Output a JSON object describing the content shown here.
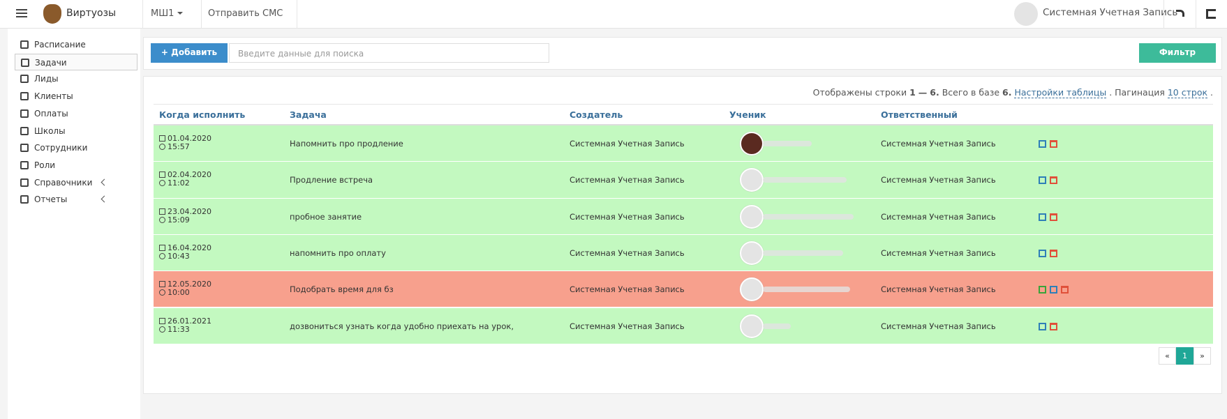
{
  "header": {
    "brand": "Виртуозы",
    "school": "МШ1",
    "sms": "Отправить СМС",
    "user": "Системная Учетная Запись"
  },
  "sidebar": [
    {
      "label": "Расписание"
    },
    {
      "label": "Задачи",
      "active": true
    },
    {
      "label": "Лиды"
    },
    {
      "label": "Клиенты"
    },
    {
      "label": "Оплаты"
    },
    {
      "label": "Школы"
    },
    {
      "label": "Сотрудники"
    },
    {
      "label": "Роли"
    },
    {
      "label": "Справочники",
      "submenu": true
    },
    {
      "label": "Отчеты",
      "submenu": true
    }
  ],
  "toolbar": {
    "add": "Добавить",
    "search_placeholder": "Введите данные для поиска",
    "filter": "Фильтр"
  },
  "info": {
    "t1": "Отображены строки",
    "from": "1",
    "dash": "—",
    "to": "6.",
    "t2": "Всего в базе",
    "total": "6.",
    "settings": "Настройки таблицы",
    "t3": ". Пагинация",
    "pagination": "10 строк",
    "t4": "."
  },
  "table": {
    "columns": [
      "Когда исполнить",
      "Задача",
      "Создатель",
      "Ученик",
      "Ответственный"
    ],
    "rows": [
      {
        "date": "01.04.2020",
        "time": "15:57",
        "task": "Напомнить про продление",
        "creator": "Системная Учетная Запись",
        "responsible": "Системная Учетная Запись",
        "color": "#c3f9c0"
      },
      {
        "date": "02.04.2020",
        "time": "11:02",
        "task": "Продление встреча",
        "creator": "Системная Учетная Запись",
        "responsible": "Системная Учетная Запись",
        "color": "#c3f9c0"
      },
      {
        "date": "23.04.2020",
        "time": "15:09",
        "task": "пробное занятие",
        "creator": "Системная Учетная Запись",
        "responsible": "Системная Учетная Запись",
        "color": "#c3f9c0"
      },
      {
        "date": "16.04.2020",
        "time": "10:43",
        "task": "напомнить про оплату",
        "creator": "Системная Учетная Запись",
        "responsible": "Системная Учетная Запись",
        "color": "#c3f9c0"
      },
      {
        "date": "12.05.2020",
        "time": "10:00",
        "task": "Подобрать время для бз",
        "creator": "Системная Учетная Запись",
        "responsible": "Системная Учетная Запись",
        "color": "#f7a08d"
      },
      {
        "date": "26.01.2021",
        "time": "11:33",
        "task": "дозвониться узнать когда удобно приехать на урок,",
        "creator": "Системная Учетная Запись",
        "responsible": "Системная Учетная Запись",
        "color": "#c3f9c0"
      }
    ]
  },
  "pager": [
    "«",
    "1",
    "»"
  ]
}
